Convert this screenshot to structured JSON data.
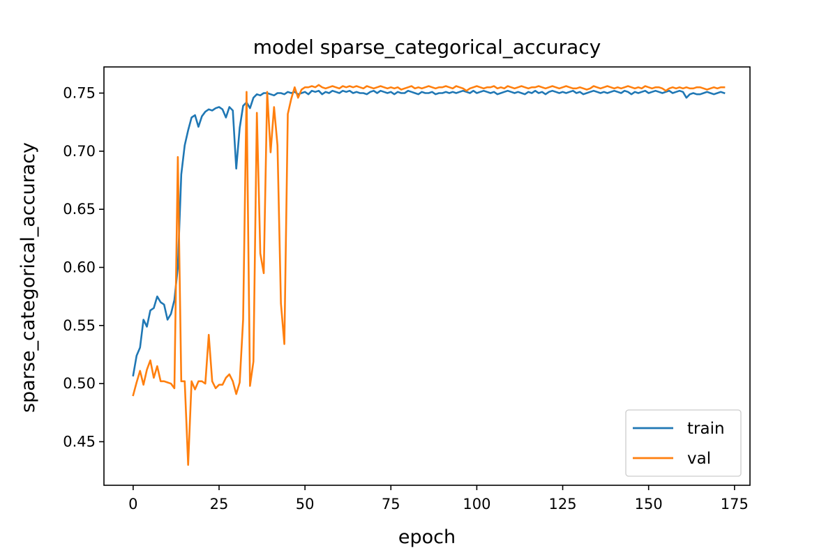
{
  "chart_data": {
    "type": "line",
    "title": "model sparse_categorical_accuracy",
    "xlabel": "epoch",
    "ylabel": "sparse_categorical_accuracy",
    "xlim": [
      -8.5,
      179.5
    ],
    "ylim": [
      0.4125,
      0.7725
    ],
    "xticks": [
      0,
      25,
      50,
      75,
      100,
      125,
      150,
      175
    ],
    "yticks": [
      0.45,
      0.5,
      0.55,
      0.6,
      0.65,
      0.7,
      0.75
    ],
    "ytick_labels": [
      "0.45",
      "0.50",
      "0.55",
      "0.60",
      "0.65",
      "0.70",
      "0.75"
    ],
    "grid": false,
    "legend_position": "lower-right",
    "series": [
      {
        "name": "train",
        "color": "#1f77b4",
        "values": [
          0.507,
          0.524,
          0.531,
          0.555,
          0.549,
          0.563,
          0.565,
          0.575,
          0.57,
          0.568,
          0.555,
          0.56,
          0.572,
          0.6,
          0.68,
          0.705,
          0.718,
          0.729,
          0.731,
          0.721,
          0.73,
          0.734,
          0.736,
          0.735,
          0.737,
          0.738,
          0.736,
          0.729,
          0.738,
          0.735,
          0.685,
          0.72,
          0.739,
          0.742,
          0.737,
          0.746,
          0.749,
          0.748,
          0.75,
          0.75,
          0.749,
          0.748,
          0.75,
          0.75,
          0.749,
          0.751,
          0.75,
          0.751,
          0.749,
          0.75,
          0.751,
          0.749,
          0.752,
          0.751,
          0.752,
          0.749,
          0.751,
          0.75,
          0.752,
          0.751,
          0.75,
          0.752,
          0.751,
          0.752,
          0.75,
          0.751,
          0.75,
          0.75,
          0.749,
          0.751,
          0.752,
          0.75,
          0.752,
          0.751,
          0.75,
          0.751,
          0.749,
          0.751,
          0.75,
          0.75,
          0.752,
          0.751,
          0.75,
          0.749,
          0.751,
          0.75,
          0.75,
          0.751,
          0.749,
          0.75,
          0.75,
          0.751,
          0.75,
          0.751,
          0.75,
          0.751,
          0.752,
          0.751,
          0.75,
          0.752,
          0.75,
          0.751,
          0.752,
          0.751,
          0.75,
          0.751,
          0.749,
          0.75,
          0.751,
          0.752,
          0.751,
          0.75,
          0.751,
          0.75,
          0.749,
          0.751,
          0.75,
          0.752,
          0.75,
          0.751,
          0.749,
          0.751,
          0.752,
          0.751,
          0.75,
          0.751,
          0.75,
          0.751,
          0.752,
          0.75,
          0.751,
          0.749,
          0.75,
          0.751,
          0.752,
          0.751,
          0.75,
          0.751,
          0.75,
          0.751,
          0.752,
          0.751,
          0.75,
          0.752,
          0.751,
          0.749,
          0.751,
          0.75,
          0.751,
          0.752,
          0.75,
          0.751,
          0.752,
          0.751,
          0.75,
          0.751,
          0.752,
          0.75,
          0.751,
          0.752,
          0.751,
          0.746,
          0.749,
          0.75,
          0.749,
          0.749,
          0.75,
          0.751,
          0.75,
          0.749,
          0.75,
          0.751,
          0.75
        ]
      },
      {
        "name": "val",
        "color": "#ff7f0e",
        "values": [
          0.49,
          0.501,
          0.511,
          0.499,
          0.512,
          0.52,
          0.505,
          0.515,
          0.502,
          0.502,
          0.501,
          0.5,
          0.496,
          0.695,
          0.502,
          0.502,
          0.43,
          0.502,
          0.495,
          0.502,
          0.502,
          0.5,
          0.542,
          0.502,
          0.496,
          0.499,
          0.499,
          0.505,
          0.508,
          0.502,
          0.491,
          0.501,
          0.555,
          0.751,
          0.498,
          0.519,
          0.733,
          0.612,
          0.595,
          0.751,
          0.699,
          0.738,
          0.705,
          0.569,
          0.534,
          0.732,
          0.745,
          0.755,
          0.746,
          0.753,
          0.755,
          0.755,
          0.756,
          0.755,
          0.757,
          0.755,
          0.754,
          0.755,
          0.756,
          0.755,
          0.754,
          0.756,
          0.755,
          0.756,
          0.755,
          0.756,
          0.755,
          0.754,
          0.756,
          0.755,
          0.754,
          0.755,
          0.756,
          0.755,
          0.754,
          0.755,
          0.754,
          0.755,
          0.753,
          0.754,
          0.755,
          0.756,
          0.754,
          0.755,
          0.754,
          0.755,
          0.756,
          0.755,
          0.754,
          0.755,
          0.755,
          0.756,
          0.755,
          0.754,
          0.756,
          0.755,
          0.754,
          0.752,
          0.754,
          0.755,
          0.756,
          0.755,
          0.754,
          0.755,
          0.755,
          0.756,
          0.754,
          0.755,
          0.754,
          0.756,
          0.755,
          0.754,
          0.755,
          0.756,
          0.755,
          0.754,
          0.755,
          0.755,
          0.756,
          0.755,
          0.754,
          0.755,
          0.756,
          0.755,
          0.754,
          0.755,
          0.756,
          0.755,
          0.754,
          0.754,
          0.755,
          0.754,
          0.753,
          0.754,
          0.756,
          0.755,
          0.754,
          0.755,
          0.756,
          0.755,
          0.754,
          0.755,
          0.754,
          0.755,
          0.756,
          0.755,
          0.754,
          0.755,
          0.754,
          0.756,
          0.755,
          0.754,
          0.755,
          0.755,
          0.754,
          0.752,
          0.754,
          0.755,
          0.754,
          0.755,
          0.754,
          0.755,
          0.754,
          0.754,
          0.755,
          0.755,
          0.754,
          0.753,
          0.754,
          0.755,
          0.754,
          0.755,
          0.755
        ]
      }
    ]
  }
}
